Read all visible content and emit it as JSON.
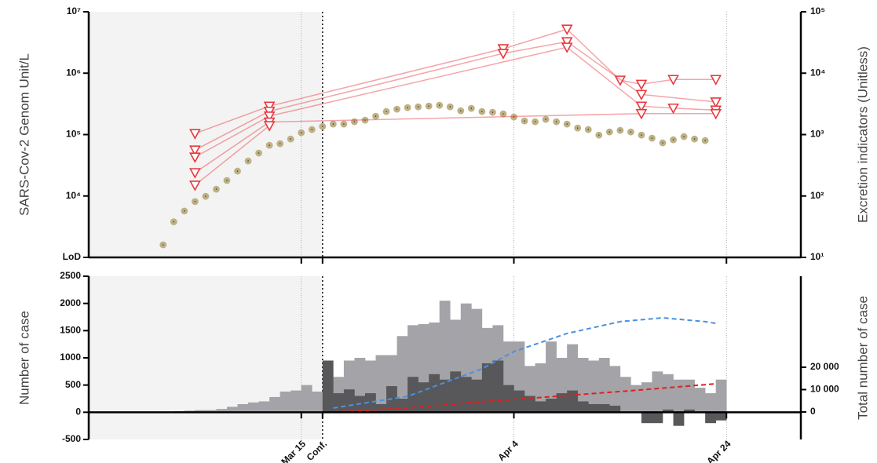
{
  "chart_data": [
    {
      "type": "scatter",
      "ylabel": "SARS-Cov-2 Genom Unit/L",
      "y2label": "Excretion indicators (Unitless)",
      "xlim": [
        "Feb 24",
        "May 1"
      ],
      "shade": [
        "Feb 24",
        "Mar 17"
      ],
      "ylog": true,
      "y2log": true,
      "ylim": [
        1000,
        10000000
      ],
      "yticks": [
        {
          "value": 1000,
          "label": "LoD"
        },
        {
          "value": 10000,
          "label": "10⁴"
        },
        {
          "value": 100000,
          "label": "10⁵"
        },
        {
          "value": 1000000,
          "label": "10⁶"
        },
        {
          "value": 10000000,
          "label": "10⁷"
        }
      ],
      "y2lim": [
        10,
        100000
      ],
      "y2ticks": [
        {
          "value": 10,
          "label": "10¹"
        },
        {
          "value": 100,
          "label": "10²"
        },
        {
          "value": 1000,
          "label": "10³"
        },
        {
          "value": 10000,
          "label": "10⁴"
        },
        {
          "value": 100000,
          "label": "10⁵"
        }
      ],
      "x": [
        "Mar 2",
        "Mar 3",
        "Mar 4",
        "Mar 5",
        "Mar 6",
        "Mar 7",
        "Mar 8",
        "Mar 9",
        "Mar 10",
        "Mar 11",
        "Mar 12",
        "Mar 13",
        "Mar 14",
        "Mar 15",
        "Mar 16",
        "Mar 17",
        "Mar 18",
        "Mar 19",
        "Mar 20",
        "Mar 21",
        "Mar 22",
        "Mar 23",
        "Mar 24",
        "Mar 25",
        "Mar 26",
        "Mar 27",
        "Mar 28",
        "Mar 29",
        "Mar 30",
        "Mar 31",
        "Apr 1",
        "Apr 2",
        "Apr 3",
        "Apr 4",
        "Apr 5",
        "Apr 6",
        "Apr 7",
        "Apr 8",
        "Apr 9",
        "Apr 10",
        "Apr 11",
        "Apr 12",
        "Apr 13",
        "Apr 14",
        "Apr 15",
        "Apr 16",
        "Apr 17",
        "Apr 18",
        "Apr 19",
        "Apr 20",
        "Apr 21",
        "Apr 22"
      ],
      "series": [
        {
          "marker": "circle",
          "axis": "y2",
          "color": "#bdb184",
          "values": [
            16,
            38,
            57,
            81,
            99,
            129,
            179,
            254,
            372,
            500,
            670,
            711,
            848,
            1074,
            1208,
            1358,
            1483,
            1483,
            1619,
            1718,
            1991,
            2373,
            2592,
            2750,
            2833,
            2917,
            3006,
            2833,
            2443,
            2673,
            2373,
            2307,
            2173,
            1932,
            1668,
            1619,
            1770,
            1619,
            1483,
            1279,
            1208,
            982,
            1104,
            1172,
            1104,
            982,
            874,
            733,
            824,
            927,
            848,
            800
          ]
        },
        {
          "marker": "triangle",
          "line": true,
          "color": "#e8383d",
          "x": [
            "Mar 5",
            "Mar 12",
            "Apr 3",
            "Apr 9",
            "Apr 14",
            "Apr 16",
            "Apr 19",
            "Apr 23"
          ],
          "values": [
            104000,
            290000,
            2500000,
            5200000,
            770000,
            660000,
            790000,
            790000
          ]
        },
        {
          "marker": "triangle",
          "line": true,
          "color": "#e8383d",
          "x": [
            "Mar 5",
            "Mar 12",
            "Apr 3",
            "Apr 9",
            "Apr 16",
            "Apr 23"
          ],
          "values": [
            56000,
            240000,
            2100000,
            3250000,
            450000,
            340000
          ]
        },
        {
          "marker": "triangle",
          "line": true,
          "color": "#e8383d",
          "x": [
            "Mar 5",
            "Mar 12",
            "Apr 9",
            "Apr 16",
            "Apr 19",
            "Apr 23"
          ],
          "values": [
            43000,
            200000,
            2650000,
            290000,
            270000,
            250000
          ]
        },
        {
          "marker": "triangle",
          "line": true,
          "color": "#e8383d",
          "x": [
            "Mar 5",
            "Mar 12",
            "Apr 16",
            "Apr 23"
          ],
          "values": [
            24000,
            160000,
            220000,
            220000
          ]
        },
        {
          "marker": "triangle",
          "line": true,
          "color": "#e8383d",
          "x": [
            "Mar 5",
            "Mar 12"
          ],
          "values": [
            15000,
            140000
          ]
        }
      ]
    },
    {
      "type": "bar",
      "ylabel": "Number of case",
      "y2label": "Total number of case",
      "xlim": [
        "Feb 24",
        "May 1"
      ],
      "shade": [
        "Feb 24",
        "Mar 17"
      ],
      "xticks": [
        "Mar 15",
        {
          "value": "Mar 17",
          "label": "Conf."
        },
        "Apr 4",
        "Apr 24"
      ],
      "ylim": [
        -500,
        2500
      ],
      "yticks": [
        -500,
        0,
        500,
        1000,
        1500,
        2000,
        2500
      ],
      "y2lim": [
        -12300,
        60700
      ],
      "y2ticks": [
        0,
        {
          "value": 10000,
          "label": "10 000"
        },
        {
          "value": 20000,
          "label": "20 000"
        }
      ],
      "x": [
        "Mar 3",
        "Mar 4",
        "Mar 5",
        "Mar 6",
        "Mar 7",
        "Mar 8",
        "Mar 9",
        "Mar 10",
        "Mar 11",
        "Mar 12",
        "Mar 13",
        "Mar 14",
        "Mar 15",
        "Mar 16",
        "Mar 17",
        "Mar 18",
        "Mar 19",
        "Mar 20",
        "Mar 21",
        "Mar 22",
        "Mar 23",
        "Mar 24",
        "Mar 25",
        "Mar 26",
        "Mar 27",
        "Mar 28",
        "Mar 29",
        "Mar 30",
        "Mar 31",
        "Apr 1",
        "Apr 2",
        "Apr 3",
        "Apr 4",
        "Apr 5",
        "Apr 6",
        "Apr 7",
        "Apr 8",
        "Apr 9",
        "Apr 10",
        "Apr 11",
        "Apr 12",
        "Apr 13",
        "Apr 14",
        "Apr 15",
        "Apr 16",
        "Apr 17",
        "Apr 18",
        "Apr 19",
        "Apr 20",
        "Apr 21",
        "Apr 22",
        "Apr 23"
      ],
      "series": [
        {
          "type": "bar",
          "color": "#a4a3a8",
          "values": [
            20,
            30,
            40,
            40,
            60,
            100,
            150,
            180,
            200,
            280,
            380,
            400,
            500,
            380,
            600,
            650,
            950,
            1000,
            950,
            1050,
            1050,
            1400,
            1600,
            1620,
            1650,
            2050,
            1700,
            2000,
            1900,
            1550,
            1600,
            1300,
            1300,
            850,
            900,
            1300,
            1000,
            1250,
            1000,
            950,
            1000,
            850,
            650,
            500,
            550,
            750,
            700,
            600,
            600,
            450,
            350,
            600
          ]
        },
        {
          "type": "bar",
          "color": "#58585a",
          "values": [
            null,
            null,
            null,
            null,
            null,
            null,
            null,
            null,
            null,
            null,
            null,
            null,
            null,
            null,
            950,
            350,
            420,
            300,
            350,
            150,
            480,
            250,
            650,
            550,
            700,
            600,
            750,
            650,
            600,
            900,
            950,
            500,
            400,
            300,
            200,
            250,
            350,
            400,
            200,
            150,
            150,
            120,
            0,
            0,
            -200,
            -200,
            50,
            -250,
            50,
            0,
            -200,
            -150
          ]
        },
        {
          "type": "line",
          "axis": "y2",
          "dash": true,
          "color": "#4a90e2",
          "x": [
            "Mar 18",
            "Mar 25",
            "Apr 1",
            "Apr 4",
            "Apr 9",
            "Apr 14",
            "Apr 18",
            "Apr 22",
            "Apr 23"
          ],
          "values": [
            1750,
            7000,
            19300,
            27000,
            35100,
            40400,
            42100,
            40400,
            39600
          ]
        },
        {
          "type": "line",
          "axis": "y2",
          "dash": true,
          "color": "#e02020",
          "x": [
            "Mar 18",
            "Mar 25",
            "Apr 1",
            "Apr 8",
            "Apr 15",
            "Apr 23"
          ],
          "values": [
            0,
            1750,
            4560,
            7000,
            9500,
            12600
          ]
        }
      ]
    }
  ]
}
